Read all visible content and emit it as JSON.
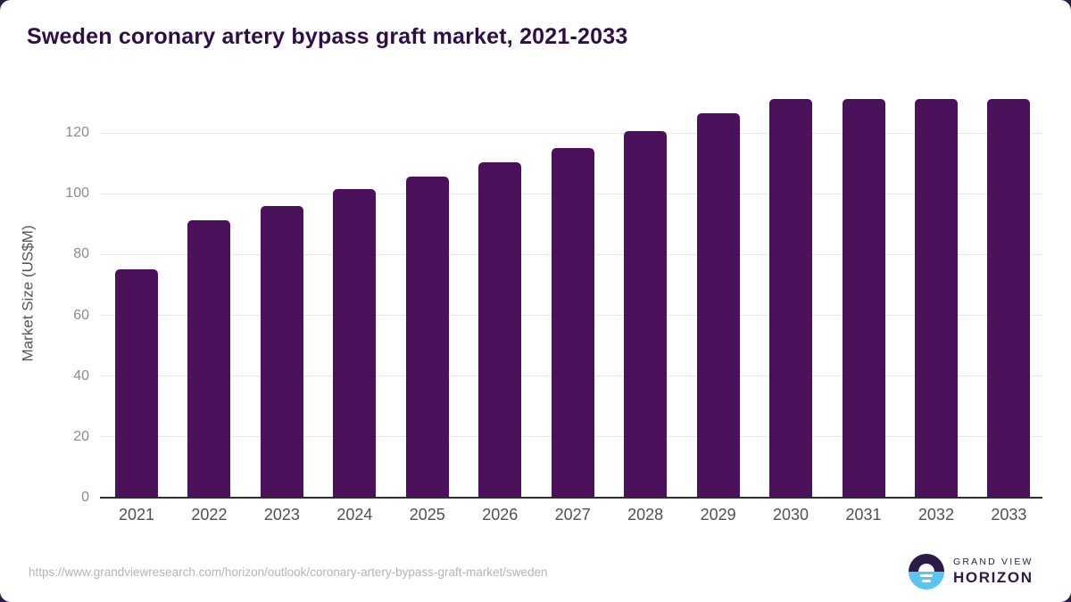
{
  "title": "Sweden coronary artery bypass graft market, 2021-2033",
  "chart_data": {
    "type": "bar",
    "title": "Sweden coronary artery bypass graft market, 2021-2033",
    "categories": [
      "2021",
      "2022",
      "2023",
      "2024",
      "2025",
      "2026",
      "2027",
      "2028",
      "2029",
      "2030",
      "2031",
      "2032",
      "2033"
    ],
    "values": [
      75.2,
      91.3,
      96.0,
      101.4,
      105.6,
      110.4,
      115.1,
      120.5,
      126.4,
      131.3,
      131.1,
      131.3,
      131.1
    ],
    "xlabel": "",
    "ylabel": "Market Size (US$M)",
    "ylim": [
      0,
      134.4
    ],
    "yticks": [
      0,
      20,
      40,
      60,
      80,
      100,
      120
    ],
    "grid": true,
    "legend": false,
    "bar_color": "#4B115A"
  },
  "footer": {
    "source_url": "https://www.grandviewresearch.com/horizon/outlook/coronary-artery-bypass-graft-market/sweden",
    "logo": {
      "brand_line": "GRAND VIEW",
      "product_line": "HORIZON",
      "icon": "sunrise-horizon-icon"
    }
  },
  "colors": {
    "bar": "#4B115A",
    "title_text": "#2F0E46",
    "axis_line": "#303030",
    "gridline": "#E7E7E7",
    "y_tick_text": "#8C8C8C",
    "x_tick_text": "#505153",
    "url_text": "#B5B5B5",
    "logo_dark": "#2D1B47",
    "logo_blue": "#5BC5F2",
    "background_corner": "#2D1B47",
    "card_background": "#FFFFFF"
  }
}
